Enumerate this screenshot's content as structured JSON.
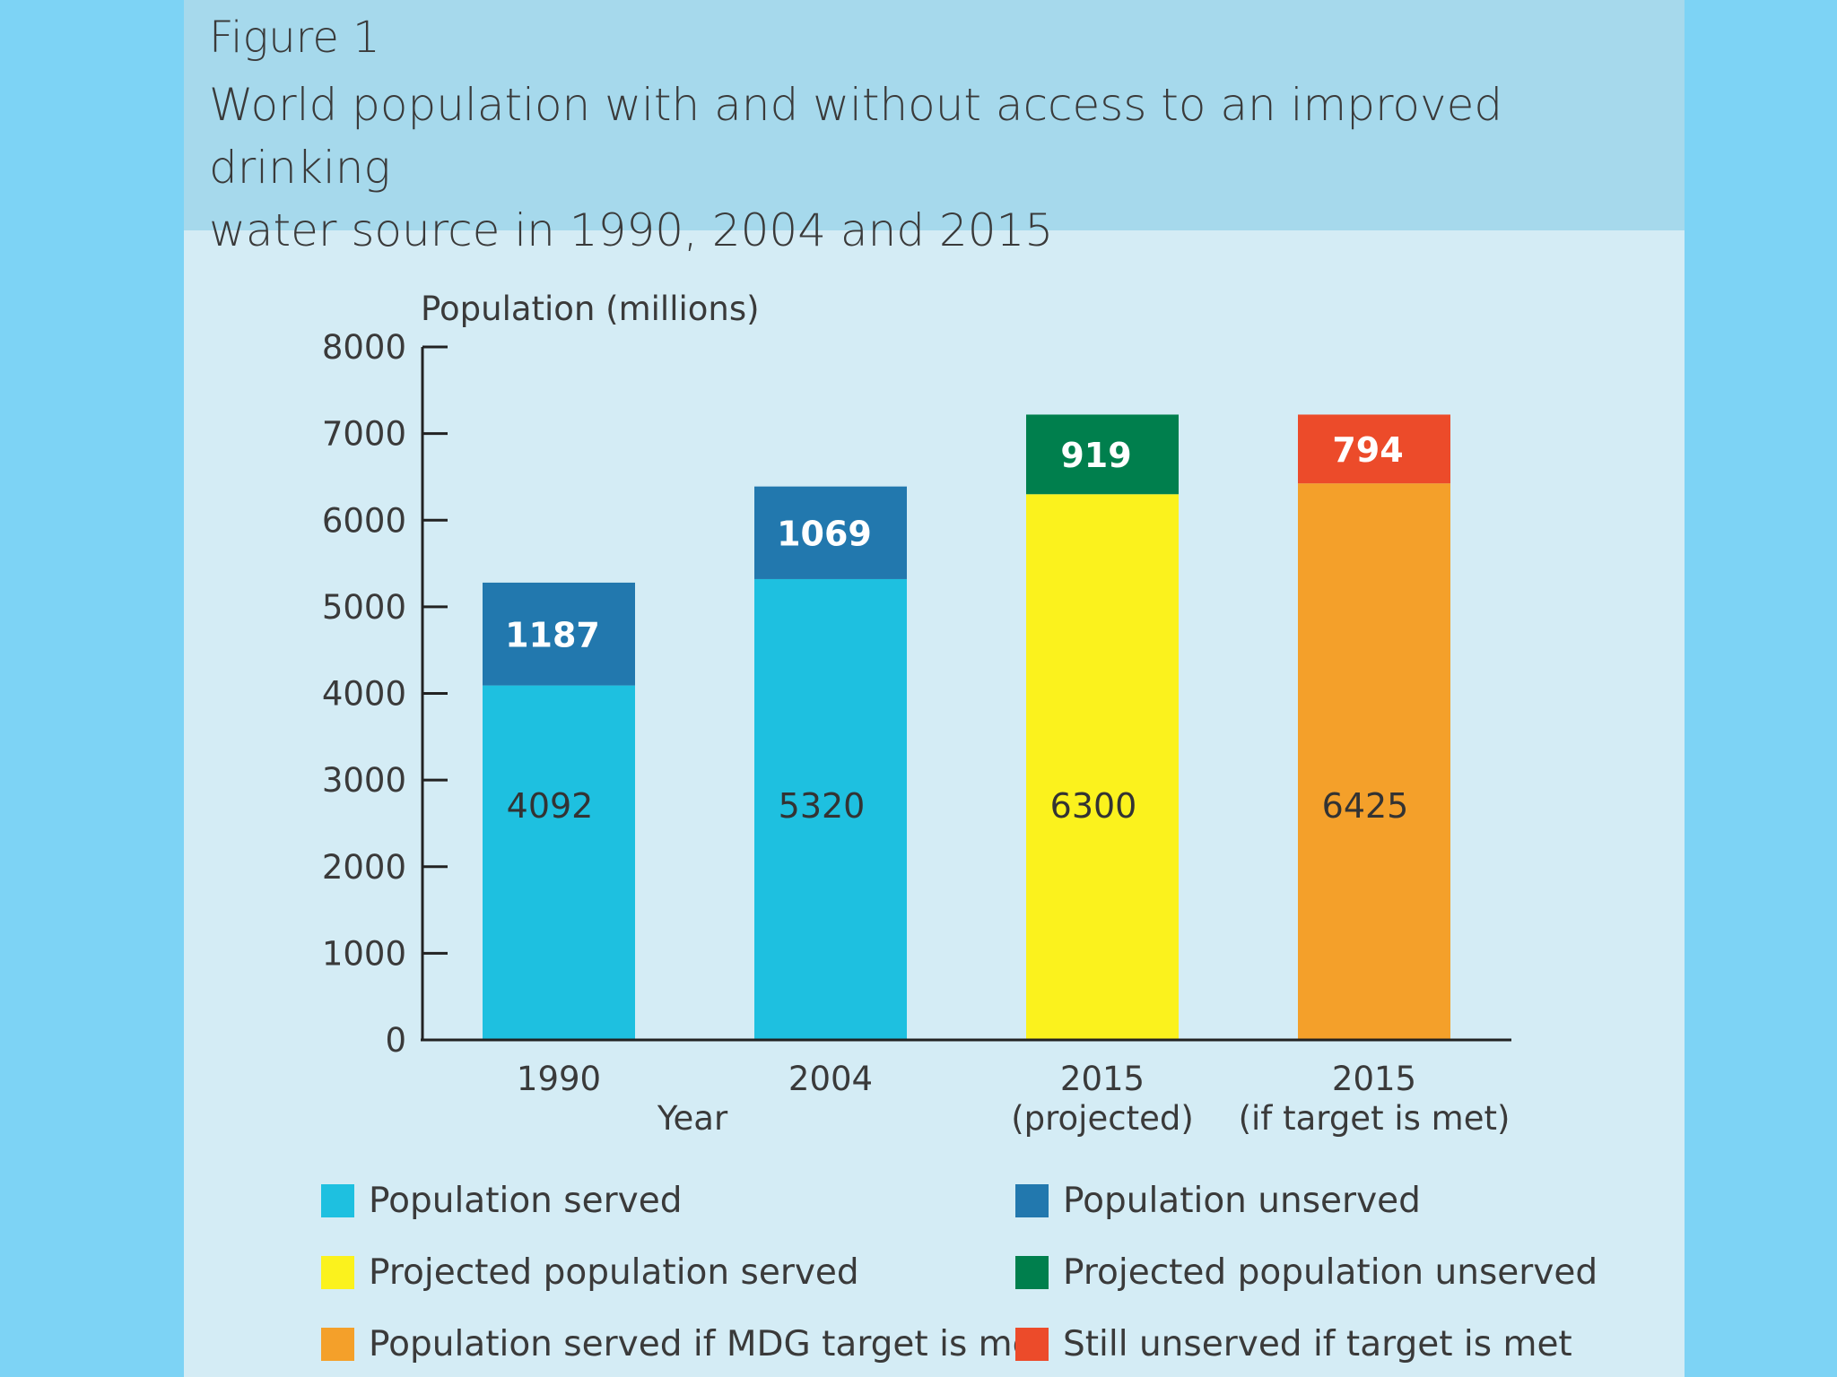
{
  "figure": {
    "label": "Figure 1",
    "title_line1": "World population with and without access to an improved drinking",
    "title_line2": "water source in 1990, 2004 and 2015"
  },
  "colors": {
    "served": "#1ec0e0",
    "unserved": "#2278ae",
    "projected_served": "#fbf21d",
    "projected_unserved": "#007f4d",
    "mdg_served": "#f4a02a",
    "mdg_unserved": "#ec4b2a"
  },
  "chart_data": {
    "type": "bar",
    "stacked": true,
    "ylabel": "Population (millions)",
    "xlabel": "Year",
    "ylim": [
      0,
      8000
    ],
    "yticks": [
      "0",
      "1000",
      "2000",
      "3000",
      "4000",
      "5000",
      "6000",
      "7000",
      "8000"
    ],
    "bars": [
      {
        "cat_line1": "1990",
        "cat_line2": "",
        "served": 4092,
        "unserved": 1187,
        "served_label": "4092",
        "unserved_label": "1187",
        "served_color": "#1ec0e0",
        "unserved_color": "#2278ae"
      },
      {
        "cat_line1": "2004",
        "cat_line2": "",
        "served": 5320,
        "unserved": 1069,
        "served_label": "5320",
        "unserved_label": "1069",
        "served_color": "#1ec0e0",
        "unserved_color": "#2278ae"
      },
      {
        "cat_line1": "2015",
        "cat_line2": "(projected)",
        "served": 6300,
        "unserved": 919,
        "served_label": "6300",
        "unserved_label": "919",
        "served_color": "#fbf21d",
        "unserved_color": "#007f4d"
      },
      {
        "cat_line1": "2015",
        "cat_line2": "(if target is met)",
        "served": 6425,
        "unserved": 794,
        "served_label": "6425",
        "unserved_label": "794",
        "served_color": "#f4a02a",
        "unserved_color": "#ec4b2a"
      }
    ]
  },
  "legend": {
    "items": [
      {
        "label": "Population served",
        "color": "#1ec0e0"
      },
      {
        "label": "Population unserved",
        "color": "#2278ae"
      },
      {
        "label": "Projected population served",
        "color": "#fbf21d"
      },
      {
        "label": "Projected population unserved",
        "color": "#007f4d"
      },
      {
        "label": "Population served if MDG target is met",
        "color": "#f4a02a"
      },
      {
        "label": "Still unserved if target is met",
        "color": "#ec4b2a"
      }
    ]
  }
}
